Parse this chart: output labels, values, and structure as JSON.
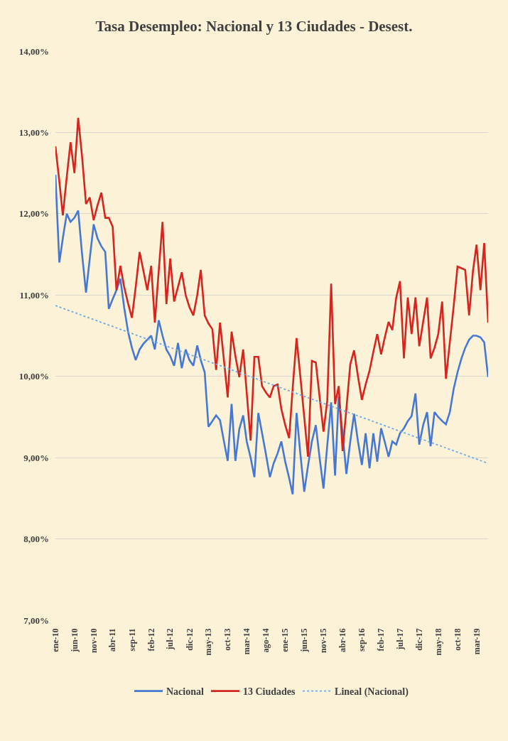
{
  "chart_data": {
    "type": "line",
    "title": "Tasa Desempleo: Nacional y 13 Ciudades - Desest.",
    "x": [
      "2010-01",
      "2010-02",
      "2010-03",
      "2010-04",
      "2010-05",
      "2010-06",
      "2010-07",
      "2010-08",
      "2010-09",
      "2010-10",
      "2010-11",
      "2010-12",
      "2011-01",
      "2011-02",
      "2011-03",
      "2011-04",
      "2011-05",
      "2011-06",
      "2011-07",
      "2011-08",
      "2011-09",
      "2011-10",
      "2011-11",
      "2011-12",
      "2012-01",
      "2012-02",
      "2012-03",
      "2012-04",
      "2012-05",
      "2012-06",
      "2012-07",
      "2012-08",
      "2012-09",
      "2012-10",
      "2012-11",
      "2012-12",
      "2013-01",
      "2013-02",
      "2013-03",
      "2013-04",
      "2013-05",
      "2013-06",
      "2013-07",
      "2013-08",
      "2013-09",
      "2013-10",
      "2013-11",
      "2013-12",
      "2014-01",
      "2014-02",
      "2014-03",
      "2014-04",
      "2014-05",
      "2014-06",
      "2014-07",
      "2014-08",
      "2014-09",
      "2014-10",
      "2014-11",
      "2014-12",
      "2015-01",
      "2015-02",
      "2015-03",
      "2015-04",
      "2015-05",
      "2015-06",
      "2015-07",
      "2015-08",
      "2015-09",
      "2015-10",
      "2015-11",
      "2015-12",
      "2016-01",
      "2016-02",
      "2016-03",
      "2016-04",
      "2016-05",
      "2016-06",
      "2016-07",
      "2016-08",
      "2016-09",
      "2016-10",
      "2016-11",
      "2016-12",
      "2017-01",
      "2017-02",
      "2017-03",
      "2017-04",
      "2017-05",
      "2017-06",
      "2017-07",
      "2017-08",
      "2017-09",
      "2017-10",
      "2017-11",
      "2017-12",
      "2018-01",
      "2018-02",
      "2018-03",
      "2018-04",
      "2018-05",
      "2018-06",
      "2018-07",
      "2018-08",
      "2018-09",
      "2018-10",
      "2018-11",
      "2018-12",
      "2019-01",
      "2019-02",
      "2019-03",
      "2019-04",
      "2019-05",
      "2019-06"
    ],
    "series": [
      {
        "name": "Nacional",
        "color": "#4678d2",
        "values": [
          12.48,
          11.4,
          11.7,
          12.0,
          11.9,
          11.95,
          12.04,
          11.5,
          11.03,
          11.45,
          11.87,
          11.7,
          11.6,
          11.53,
          10.83,
          10.95,
          11.06,
          11.2,
          10.85,
          10.55,
          10.35,
          10.2,
          10.33,
          10.4,
          10.45,
          10.5,
          10.33,
          10.69,
          10.5,
          10.33,
          10.25,
          10.13,
          10.41,
          10.1,
          10.33,
          10.2,
          10.13,
          10.38,
          10.2,
          10.05,
          9.38,
          9.45,
          9.52,
          9.46,
          9.2,
          8.96,
          9.66,
          8.96,
          9.35,
          9.52,
          9.2,
          9.0,
          8.76,
          9.55,
          9.3,
          9.04,
          8.76,
          8.93,
          9.05,
          9.2,
          8.95,
          8.75,
          8.55,
          9.55,
          9.05,
          8.58,
          8.9,
          9.2,
          9.4,
          9.0,
          8.62,
          9.15,
          9.68,
          8.78,
          9.75,
          9.3,
          8.8,
          9.2,
          9.54,
          9.2,
          8.91,
          9.3,
          8.87,
          9.3,
          8.95,
          9.36,
          9.2,
          9.01,
          9.2,
          9.16,
          9.3,
          9.36,
          9.45,
          9.51,
          9.79,
          9.16,
          9.4,
          9.56,
          9.14,
          9.56,
          9.5,
          9.45,
          9.41,
          9.56,
          9.85,
          10.05,
          10.22,
          10.35,
          10.45,
          10.5,
          10.5,
          10.48,
          10.42,
          9.99
        ]
      },
      {
        "name": "13 Ciudades",
        "color": "#d6241e",
        "values": [
          12.83,
          12.4,
          11.98,
          12.45,
          12.88,
          12.5,
          13.18,
          12.7,
          12.12,
          12.2,
          11.92,
          12.1,
          12.26,
          11.95,
          11.95,
          11.84,
          11.06,
          11.36,
          11.1,
          10.9,
          10.72,
          11.1,
          11.53,
          11.3,
          11.06,
          11.36,
          10.66,
          11.3,
          11.9,
          10.89,
          11.45,
          10.92,
          11.1,
          11.28,
          11.0,
          10.85,
          10.75,
          11.0,
          11.31,
          10.75,
          10.65,
          10.58,
          10.08,
          10.66,
          10.2,
          9.74,
          10.55,
          10.25,
          9.99,
          10.33,
          9.8,
          9.21,
          10.24,
          10.24,
          9.88,
          9.8,
          9.74,
          9.88,
          9.9,
          9.6,
          9.4,
          9.24,
          9.85,
          10.47,
          10.0,
          9.5,
          9.01,
          10.19,
          10.17,
          9.75,
          9.32,
          9.7,
          11.14,
          9.66,
          9.88,
          9.08,
          9.6,
          10.15,
          10.32,
          10.0,
          9.71,
          9.9,
          10.07,
          10.3,
          10.52,
          10.27,
          10.47,
          10.67,
          10.57,
          10.97,
          11.17,
          10.22,
          10.97,
          10.52,
          10.97,
          10.37,
          10.67,
          10.97,
          10.22,
          10.35,
          10.52,
          10.92,
          9.97,
          10.42,
          10.87,
          11.35,
          11.33,
          11.31,
          10.75,
          11.3,
          11.62,
          11.06,
          11.64,
          10.66
        ]
      },
      {
        "name": "Lineal (Nacional)",
        "color": "#6eaae0",
        "line_style": "dotted",
        "x": [
          "2010-01",
          "2019-06"
        ],
        "values": [
          10.87,
          8.93
        ]
      }
    ],
    "xlim": [
      "2010-01",
      "2019-06"
    ],
    "xticks": [
      {
        "value": "2010-01",
        "label": "ene-10"
      },
      {
        "value": "2010-06",
        "label": "jun-10"
      },
      {
        "value": "2010-11",
        "label": "nov-10"
      },
      {
        "value": "2011-04",
        "label": "abr-11"
      },
      {
        "value": "2011-09",
        "label": "sep-11"
      },
      {
        "value": "2012-02",
        "label": "feb-12"
      },
      {
        "value": "2012-07",
        "label": "jul-12"
      },
      {
        "value": "2012-12",
        "label": "dic-12"
      },
      {
        "value": "2013-05",
        "label": "may-13"
      },
      {
        "value": "2013-10",
        "label": "oct-13"
      },
      {
        "value": "2014-03",
        "label": "mar-14"
      },
      {
        "value": "2014-08",
        "label": "ago-14"
      },
      {
        "value": "2015-01",
        "label": "ene-15"
      },
      {
        "value": "2015-06",
        "label": "jun-15"
      },
      {
        "value": "2015-11",
        "label": "nov-15"
      },
      {
        "value": "2016-04",
        "label": "abr-16"
      },
      {
        "value": "2016-09",
        "label": "sep-16"
      },
      {
        "value": "2017-02",
        "label": "feb-17"
      },
      {
        "value": "2017-07",
        "label": "jul-17"
      },
      {
        "value": "2017-12",
        "label": "dic-17"
      },
      {
        "value": "2018-05",
        "label": "may-18"
      },
      {
        "value": "2018-10",
        "label": "oct-18"
      },
      {
        "value": "2019-03",
        "label": "mar-19"
      }
    ],
    "ylim": [
      7,
      14
    ],
    "yticks": [
      {
        "value": 7,
        "label": "7,00%"
      },
      {
        "value": 8,
        "label": "8,00%"
      },
      {
        "value": 9,
        "label": "9,00%"
      },
      {
        "value": 10,
        "label": "10,00%"
      },
      {
        "value": 11,
        "label": "11,00%"
      },
      {
        "value": 12,
        "label": "12,00%"
      },
      {
        "value": 13,
        "label": "13,00%"
      },
      {
        "value": 14,
        "label": "14,00%"
      }
    ],
    "grid": "y",
    "legend": "bottom"
  }
}
